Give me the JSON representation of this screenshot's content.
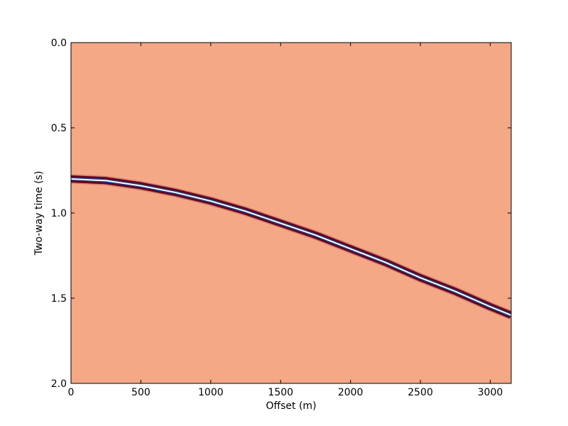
{
  "chart_data": {
    "type": "heatmap",
    "title": "",
    "xlabel": "Offset (m)",
    "ylabel": "Two-way time (s)",
    "xlim": [
      0,
      3150
    ],
    "ylim": [
      2.0,
      0.0
    ],
    "y_inverted": true,
    "grid": false,
    "legend": "none",
    "x_ticks": [
      "0",
      "500",
      "1000",
      "1500",
      "2000",
      "2500",
      "3000"
    ],
    "y_ticks": [
      "0.0",
      "0.5",
      "1.0",
      "1.5",
      "2.0"
    ],
    "colors": {
      "background": "#f4a886",
      "trough": "#67001f",
      "peak_center": "#ffffff",
      "peak_edge": "#1f3d7a"
    },
    "event": {
      "description": "hyperbolic reflection",
      "samples": [
        {
          "x": 0,
          "t": 0.8
        },
        {
          "x": 250,
          "t": 0.81
        },
        {
          "x": 500,
          "t": 0.84
        },
        {
          "x": 750,
          "t": 0.88
        },
        {
          "x": 1000,
          "t": 0.93
        },
        {
          "x": 1250,
          "t": 0.99
        },
        {
          "x": 1500,
          "t": 1.06
        },
        {
          "x": 1750,
          "t": 1.13
        },
        {
          "x": 2000,
          "t": 1.21
        },
        {
          "x": 2250,
          "t": 1.29
        },
        {
          "x": 2500,
          "t": 1.38
        },
        {
          "x": 2750,
          "t": 1.46
        },
        {
          "x": 3000,
          "t": 1.55
        },
        {
          "x": 3150,
          "t": 1.6
        }
      ]
    }
  }
}
